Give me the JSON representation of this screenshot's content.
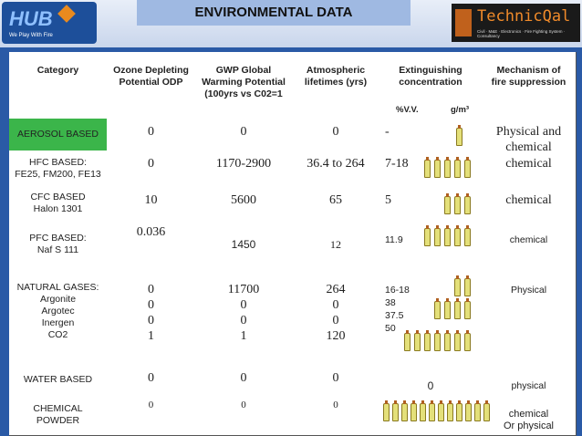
{
  "header": {
    "title": "ENVIRONMENTAL DATA",
    "logo_left": "HUB",
    "logo_left_tagline": "We Play With Fire",
    "logo_right": "TechnicQal",
    "logo_right_tagline": "Civil · M&E · Electronics · Fire Fighting System · Consultancy"
  },
  "table": {
    "columns": [
      [
        "Category"
      ],
      [
        "Ozone Depleting",
        "Potential ODP"
      ],
      [
        "GWP  Global",
        "Warming Potential",
        "(100yrs vs C02=1"
      ],
      [
        "Atmospheric",
        "lifetimes (yrs)"
      ],
      [
        "Extinguishing",
        "concentration"
      ],
      [
        "Mechanism of",
        "fire suppression"
      ]
    ],
    "units": [
      "%V.V.",
      "g/m³"
    ],
    "rows": [
      [
        [
          "AEROSOL BASED"
        ],
        [
          "0"
        ],
        [
          "0"
        ],
        [
          "0"
        ],
        [
          "-"
        ],
        [
          "Physical and",
          "chemical"
        ]
      ],
      [
        [
          "HFC BASED:",
          "FE25, FM200, FE13"
        ],
        [
          "0"
        ],
        [
          "1170-2900"
        ],
        [
          "36.4 to 264"
        ],
        [
          "7-18"
        ],
        [
          "chemical"
        ]
      ],
      [
        [
          "CFC BASED",
          "Halon 1301"
        ],
        [
          "10"
        ],
        [
          "5600"
        ],
        [
          "65"
        ],
        [
          "5"
        ],
        [
          "chemical"
        ]
      ],
      [
        [
          "PFC BASED:",
          "Naf  S 111"
        ],
        [
          "0.036"
        ],
        [
          "1450"
        ],
        [
          "12"
        ],
        [
          "11.9"
        ],
        [
          "chemical"
        ]
      ],
      [
        [
          "NATURAL GASES:",
          "Argonite",
          "Argotec",
          "Inergen",
          "",
          "CO2"
        ],
        [
          "0",
          "0",
          "0",
          "1"
        ],
        [
          "11700",
          "0",
          "0",
          "1"
        ],
        [
          "264",
          "0",
          "0",
          "120"
        ],
        [
          "16-18",
          "38",
          "37.5",
          "50"
        ],
        [
          "Physical"
        ]
      ],
      [
        [
          "WATER BASED"
        ],
        [
          "0"
        ],
        [
          "0"
        ],
        [
          "0"
        ],
        [
          "0"
        ],
        [
          "physical"
        ]
      ],
      [
        [
          "CHEMICAL",
          "POWDER"
        ],
        [
          "0"
        ],
        [
          "0"
        ],
        [
          "0"
        ],
        [],
        [
          "chemical",
          "Or physical"
        ]
      ]
    ]
  }
}
